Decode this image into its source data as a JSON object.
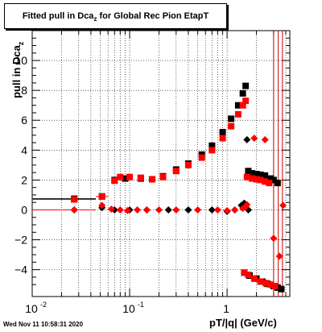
{
  "chart_data": {
    "type": "scatter",
    "title_main": "Fitted pull in Dca",
    "title_sub": "z",
    "title_rest": " for Global Rec Pion EtapT",
    "ylabel_main": "pull in Dca",
    "ylabel_sub": "z",
    "xlabel": "pT/|q| (GeV/c)",
    "timestamp": "Wed Nov 11 10:58:31 2020",
    "x_scale": "log",
    "xlim": [
      0.01,
      4.4
    ],
    "ylim": [
      -5.8,
      12
    ],
    "grid": true,
    "x_tick_labels": [
      {
        "value": 0.01,
        "base": "10",
        "exp": "-2"
      },
      {
        "value": 0.1,
        "base": "10",
        "exp": "-1"
      },
      {
        "value": 1,
        "base": "1",
        "exp": ""
      }
    ],
    "y_ticks": [
      -4,
      -2,
      0,
      2,
      4,
      6,
      8,
      10
    ],
    "y_tick_labels": [
      "−4",
      "−2",
      "0",
      "2",
      "4",
      "6",
      "8",
      "10"
    ],
    "vlines": [
      3.0,
      3.35,
      3.7
    ],
    "colors": {
      "black_series": "#000000",
      "red_series": "#ff0000"
    },
    "series": [
      {
        "marker": "square",
        "color": "#000000",
        "points": [
          [
            0.027,
            0.75
          ],
          [
            0.052,
            0.9
          ],
          [
            0.07,
            2.0
          ],
          [
            0.09,
            2.1
          ],
          [
            0.13,
            2.1
          ],
          [
            0.17,
            2.05
          ],
          [
            0.22,
            2.25
          ],
          [
            0.3,
            2.7
          ],
          [
            0.4,
            3.1
          ],
          [
            0.55,
            3.7
          ],
          [
            0.7,
            4.3
          ],
          [
            0.9,
            5.2
          ],
          [
            1.1,
            6.1
          ],
          [
            1.3,
            7.0
          ],
          [
            1.45,
            7.8
          ],
          [
            1.55,
            8.3
          ],
          [
            1.65,
            2.6
          ],
          [
            1.8,
            2.45
          ],
          [
            2.0,
            2.4
          ],
          [
            2.2,
            2.35
          ],
          [
            2.45,
            2.3
          ],
          [
            2.8,
            2.1
          ],
          [
            3.0,
            2.0
          ],
          [
            3.3,
            1.8
          ],
          [
            1.5,
            -4.2
          ],
          [
            1.7,
            -4.4
          ],
          [
            2.0,
            -4.6
          ],
          [
            2.3,
            -4.8
          ],
          [
            2.6,
            -4.95
          ],
          [
            3.0,
            -5.1
          ],
          [
            3.3,
            -5.2
          ],
          [
            3.6,
            -5.3
          ]
        ]
      },
      {
        "marker": "diamond",
        "color": "#000000",
        "points": [
          [
            0.027,
            0.0
          ],
          [
            0.052,
            0.15
          ],
          [
            0.07,
            0.0
          ],
          [
            0.1,
            0.0
          ],
          [
            0.15,
            0.0
          ],
          [
            0.25,
            0.0
          ],
          [
            0.4,
            0.0
          ],
          [
            0.7,
            0.0
          ],
          [
            1.0,
            -0.1
          ],
          [
            1.2,
            0.0
          ],
          [
            1.4,
            0.3
          ],
          [
            1.5,
            0.45
          ],
          [
            1.65,
            0.0
          ],
          [
            1.6,
            4.7
          ]
        ]
      },
      {
        "marker": "square",
        "color": "#ff0000",
        "points": [
          [
            0.027,
            0.7
          ],
          [
            0.052,
            0.9
          ],
          [
            0.07,
            1.95
          ],
          [
            0.08,
            2.2
          ],
          [
            0.1,
            2.2
          ],
          [
            0.13,
            2.15
          ],
          [
            0.17,
            2.05
          ],
          [
            0.22,
            2.2
          ],
          [
            0.3,
            2.6
          ],
          [
            0.4,
            3.0
          ],
          [
            0.55,
            3.5
          ],
          [
            0.7,
            4.0
          ],
          [
            0.9,
            4.8
          ],
          [
            1.1,
            5.6
          ],
          [
            1.3,
            6.4
          ],
          [
            1.45,
            7.0
          ],
          [
            1.55,
            7.3
          ],
          [
            1.6,
            2.2
          ],
          [
            1.8,
            2.1
          ],
          [
            2.0,
            2.05
          ],
          [
            2.2,
            2.0
          ],
          [
            2.45,
            1.9
          ],
          [
            2.7,
            1.8
          ],
          [
            1.5,
            -4.2
          ],
          [
            1.65,
            -4.35
          ],
          [
            1.9,
            -4.6
          ],
          [
            2.2,
            -4.8
          ],
          [
            2.5,
            -4.9
          ],
          [
            2.8,
            -5.0
          ],
          [
            3.1,
            -5.1
          ]
        ]
      },
      {
        "marker": "diamond",
        "color": "#ff0000",
        "points": [
          [
            0.027,
            0.0
          ],
          [
            0.052,
            0.3
          ],
          [
            0.065,
            0.05
          ],
          [
            0.08,
            0.0
          ],
          [
            0.095,
            -0.05
          ],
          [
            0.12,
            0.0
          ],
          [
            0.15,
            0.0
          ],
          [
            0.2,
            0.0
          ],
          [
            0.3,
            0.0
          ],
          [
            0.5,
            0.0
          ],
          [
            0.8,
            0.0
          ],
          [
            1.0,
            -0.05
          ],
          [
            1.2,
            0.0
          ],
          [
            1.45,
            0.1
          ],
          [
            1.55,
            0.2
          ],
          [
            1.9,
            4.8
          ],
          [
            2.45,
            4.7
          ],
          [
            1.6,
            0.35
          ],
          [
            3.0,
            -1.9
          ],
          [
            3.45,
            -3.1
          ],
          [
            3.75,
            0.3
          ]
        ]
      }
    ],
    "xerr_rows": [
      {
        "y": 0.75,
        "x0": 0.01,
        "x1": 0.045,
        "color": "#000000"
      },
      {
        "y": 0.7,
        "x0": 0.01,
        "x1": 0.045,
        "color": "#ff0000"
      },
      {
        "y": 0.0,
        "x0": 0.01,
        "x1": 0.045,
        "color": "#000000"
      },
      {
        "y": 0.0,
        "x0": 0.01,
        "x1": 0.045,
        "color": "#ff0000"
      },
      {
        "y": 0.9,
        "x0": 0.045,
        "x1": 0.06,
        "color": "#ff0000"
      }
    ]
  }
}
